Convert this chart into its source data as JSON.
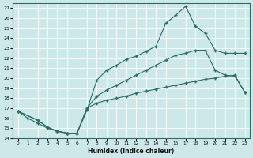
{
  "xlabel": "Humidex (Indice chaleur)",
  "bg_color": "#cde8e8",
  "grid_color": "#ffffff",
  "line_color": "#2d6b65",
  "xlim": [
    -0.5,
    23.5
  ],
  "ylim": [
    14,
    27.5
  ],
  "xticks": [
    0,
    1,
    2,
    3,
    4,
    5,
    6,
    7,
    8,
    9,
    10,
    11,
    12,
    13,
    14,
    15,
    16,
    17,
    18,
    19,
    20,
    21,
    22,
    23
  ],
  "yticks": [
    14,
    15,
    16,
    17,
    18,
    19,
    20,
    21,
    22,
    23,
    24,
    25,
    26,
    27
  ],
  "line1_x": [
    0,
    2,
    3,
    4,
    5,
    6,
    7,
    8,
    9,
    10,
    11,
    12,
    13,
    14,
    15,
    16,
    17,
    18,
    19,
    20,
    21,
    22,
    23
  ],
  "line1_y": [
    16.7,
    15.8,
    15.1,
    14.7,
    14.5,
    14.5,
    16.8,
    19.8,
    20.8,
    21.3,
    21.9,
    22.2,
    22.7,
    23.2,
    25.5,
    26.3,
    27.2,
    25.2,
    24.5,
    22.8,
    22.5,
    22.5,
    22.5
  ],
  "line2_x": [
    0,
    1,
    2,
    3,
    4,
    5,
    6,
    7,
    8,
    9,
    10,
    11,
    12,
    13,
    14,
    15,
    16,
    17,
    18,
    19,
    20,
    21,
    22,
    23
  ],
  "line2_y": [
    16.7,
    16.0,
    15.5,
    15.0,
    14.7,
    14.5,
    14.5,
    17.0,
    18.2,
    18.8,
    19.3,
    19.8,
    20.3,
    20.8,
    21.3,
    21.8,
    22.3,
    22.5,
    22.8,
    22.8,
    20.8,
    20.3,
    20.2,
    18.6
  ],
  "line3_x": [
    0,
    2,
    3,
    4,
    5,
    6,
    7,
    8,
    9,
    10,
    11,
    12,
    13,
    14,
    15,
    16,
    17,
    18,
    19,
    20,
    21,
    22,
    23
  ],
  "line3_y": [
    16.7,
    15.8,
    15.1,
    14.7,
    14.5,
    14.5,
    17.0,
    17.5,
    17.8,
    18.0,
    18.2,
    18.5,
    18.7,
    18.9,
    19.1,
    19.3,
    19.5,
    19.7,
    19.9,
    20.0,
    20.2,
    20.3,
    18.6
  ]
}
